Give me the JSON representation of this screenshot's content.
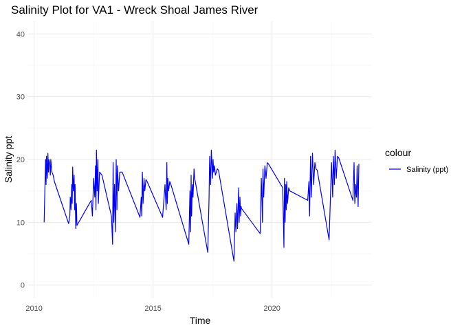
{
  "chart_data": {
    "type": "line",
    "title": "Salinity Plot for VA1 - Wreck Shoal James River",
    "xlabel": "Time",
    "ylabel": "Salinity ppt",
    "xlim": [
      2009.75,
      2024.2
    ],
    "ylim": [
      -2,
      42
    ],
    "x_ticks": [
      2010,
      2015,
      2020
    ],
    "y_ticks": [
      0,
      10,
      20,
      30,
      40
    ],
    "grid": true,
    "legend": {
      "title": "colour",
      "position": "right"
    },
    "series": [
      {
        "name": "Salinity (ppt)",
        "color": "#0000ff",
        "x": [
          2010.42,
          2010.48,
          2010.5,
          2010.52,
          2010.55,
          2010.58,
          2010.6,
          2010.62,
          2010.65,
          2010.68,
          2010.7,
          2010.72,
          2010.75,
          2010.8,
          2010.85,
          2011.45,
          2011.5,
          2011.52,
          2011.55,
          2011.58,
          2011.6,
          2011.62,
          2011.65,
          2011.68,
          2011.7,
          2011.72,
          2011.75,
          2011.78,
          2011.8,
          2012.4,
          2012.45,
          2012.5,
          2012.55,
          2012.58,
          2012.6,
          2012.62,
          2012.65,
          2012.68,
          2012.7,
          2012.75,
          2012.85,
          2013.25,
          2013.3,
          2013.32,
          2013.35,
          2013.38,
          2013.42,
          2013.45,
          2013.48,
          2013.5,
          2013.55,
          2013.6,
          2013.7,
          2014.45,
          2014.5,
          2014.52,
          2014.55,
          2014.58,
          2014.62,
          2014.65,
          2014.7,
          2014.75,
          2015.4,
          2015.5,
          2015.55,
          2015.58,
          2015.6,
          2015.62,
          2015.65,
          2015.7,
          2015.75,
          2016.5,
          2016.55,
          2016.58,
          2016.6,
          2016.62,
          2016.65,
          2016.68,
          2016.72,
          2016.75,
          2017.3,
          2017.35,
          2017.38,
          2017.42,
          2017.45,
          2017.5,
          2017.52,
          2017.55,
          2017.58,
          2017.62,
          2017.7,
          2017.75,
          2018.4,
          2018.45,
          2018.48,
          2018.52,
          2018.55,
          2018.6,
          2018.62,
          2018.65,
          2018.68,
          2018.7,
          2018.72,
          2019.5,
          2019.55,
          2019.6,
          2019.62,
          2019.65,
          2019.7,
          2019.75,
          2019.8,
          2019.85,
          2020.45,
          2020.5,
          2020.52,
          2020.55,
          2020.58,
          2020.6,
          2020.62,
          2020.65,
          2020.7,
          2020.75,
          2021.5,
          2021.55,
          2021.58,
          2021.62,
          2021.65,
          2021.7,
          2021.75,
          2021.8,
          2021.85,
          2021.9,
          2022.4,
          2022.5,
          2022.55,
          2022.58,
          2022.62,
          2022.65,
          2022.7,
          2022.75,
          2022.8,
          2023.4,
          2023.45,
          2023.48,
          2023.52,
          2023.55,
          2023.58,
          2023.62,
          2023.65
        ],
        "y": [
          10,
          20,
          16,
          20.5,
          17,
          21,
          18,
          20,
          19.5,
          17.5,
          20,
          19,
          18,
          17.5,
          16.5,
          9.8,
          11,
          14,
          12,
          16,
          13,
          18.8,
          15,
          17.5,
          12,
          16,
          9,
          13,
          9.5,
          13.5,
          11,
          17,
          14,
          19,
          12,
          21.5,
          15,
          20,
          13,
          18,
          17.5,
          11,
          6.5,
          19.5,
          10,
          16,
          8.5,
          20,
          12,
          19,
          15,
          18,
          18,
          10.8,
          14,
          11,
          18,
          13,
          17,
          15,
          16.8,
          16.5,
          10.8,
          16,
          12,
          19.5,
          13,
          17,
          15,
          16.5,
          16,
          6.5,
          15,
          8.5,
          17.5,
          11,
          16,
          14,
          18.5,
          17,
          5.2,
          13.5,
          20.5,
          16,
          21.5,
          17,
          20,
          18,
          19,
          17.5,
          18.5,
          18.3,
          3.8,
          11.5,
          8.5,
          13,
          9,
          15.5,
          10,
          14,
          11,
          12.5,
          12.2,
          8.2,
          17,
          10,
          18.5,
          14,
          19,
          17,
          19.5,
          19.3,
          15.5,
          6,
          17,
          10,
          16,
          12,
          16.5,
          13,
          15.5,
          15,
          13.5,
          16.5,
          11,
          20.5,
          14,
          21,
          16,
          19.5,
          18.5,
          18.3,
          7.2,
          19.5,
          14,
          20.5,
          16,
          21.5,
          17,
          20.5,
          20.3,
          13.5,
          19.5,
          13,
          16,
          14,
          19,
          12.5,
          19.3
        ]
      }
    ]
  }
}
